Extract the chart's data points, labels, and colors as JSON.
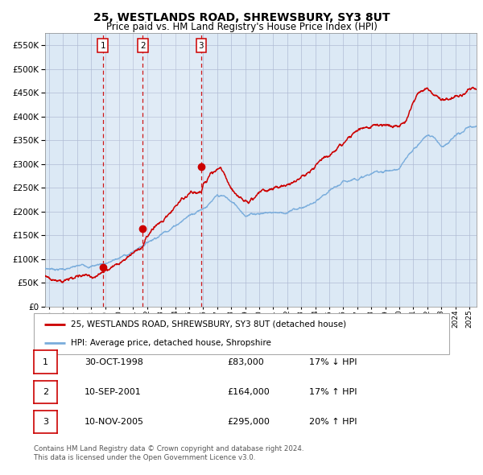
{
  "title": "25, WESTLANDS ROAD, SHREWSBURY, SY3 8UT",
  "subtitle": "Price paid vs. HM Land Registry's House Price Index (HPI)",
  "bg_color": "#dce9f5",
  "red_line_color": "#cc0000",
  "blue_line_color": "#7aaddc",
  "sale_marker_color": "#cc0000",
  "vline_color": "#cc0000",
  "grid_color": "#b0bcd4",
  "sales": [
    {
      "label": "1",
      "date_x": 1998.83,
      "price": 83000
    },
    {
      "label": "2",
      "date_x": 2001.69,
      "price": 164000
    },
    {
      "label": "3",
      "date_x": 2005.86,
      "price": 295000
    }
  ],
  "legend_red": "25, WESTLANDS ROAD, SHREWSBURY, SY3 8UT (detached house)",
  "legend_blue": "HPI: Average price, detached house, Shropshire",
  "table_rows": [
    {
      "num": "1",
      "date": "30-OCT-1998",
      "price": "£83,000",
      "hpi": "17% ↓ HPI"
    },
    {
      "num": "2",
      "date": "10-SEP-2001",
      "price": "£164,000",
      "hpi": "17% ↑ HPI"
    },
    {
      "num": "3",
      "date": "10-NOV-2005",
      "price": "£295,000",
      "hpi": "20% ↑ HPI"
    }
  ],
  "footer": "Contains HM Land Registry data © Crown copyright and database right 2024.\nThis data is licensed under the Open Government Licence v3.0.",
  "ylim": [
    0,
    575000
  ],
  "xlim_start": 1994.7,
  "xlim_end": 2025.5,
  "hpi_knots_x": [
    1995,
    1996,
    1997,
    1998,
    1999,
    2000,
    2001,
    2002,
    2003,
    2004,
    2005,
    2006,
    2007,
    2007.5,
    2008,
    2009,
    2009.5,
    2010,
    2011,
    2012,
    2013,
    2014,
    2015,
    2016,
    2017,
    2018,
    2019,
    2020,
    2021,
    2022,
    2022.5,
    2023,
    2024,
    2025
  ],
  "hpi_knots_y": [
    80000,
    82000,
    85000,
    88000,
    96000,
    107000,
    120000,
    143000,
    165000,
    188000,
    212000,
    233000,
    255000,
    252000,
    240000,
    215000,
    218000,
    222000,
    226000,
    228000,
    238000,
    248000,
    262000,
    278000,
    292000,
    300000,
    308000,
    312000,
    348000,
    382000,
    375000,
    360000,
    382000,
    395000
  ],
  "prop_knots_x": [
    1995,
    1996,
    1997,
    1998,
    1998.83,
    1999,
    2000,
    2001,
    2001.69,
    2002,
    2003,
    2004,
    2005,
    2005.86,
    2006,
    2006.5,
    2007,
    2007.3,
    2007.8,
    2008,
    2008.5,
    2009,
    2009.5,
    2010,
    2011,
    2012,
    2013,
    2014,
    2015,
    2016,
    2017,
    2018,
    2019,
    2020,
    2020.5,
    2021,
    2021.5,
    2022,
    2022.3,
    2022.7,
    2023,
    2023.5,
    2024,
    2024.3,
    2024.7,
    2025
  ],
  "prop_knots_y": [
    65000,
    67000,
    71000,
    77000,
    83000,
    90000,
    118000,
    145000,
    164000,
    185000,
    215000,
    255000,
    282000,
    295000,
    312000,
    332000,
    344000,
    340000,
    310000,
    295000,
    278000,
    272000,
    278000,
    285000,
    295000,
    298000,
    308000,
    325000,
    345000,
    362000,
    378000,
    388000,
    392000,
    395000,
    410000,
    448000,
    470000,
    475000,
    465000,
    460000,
    455000,
    458000,
    468000,
    472000,
    480000,
    490000
  ]
}
